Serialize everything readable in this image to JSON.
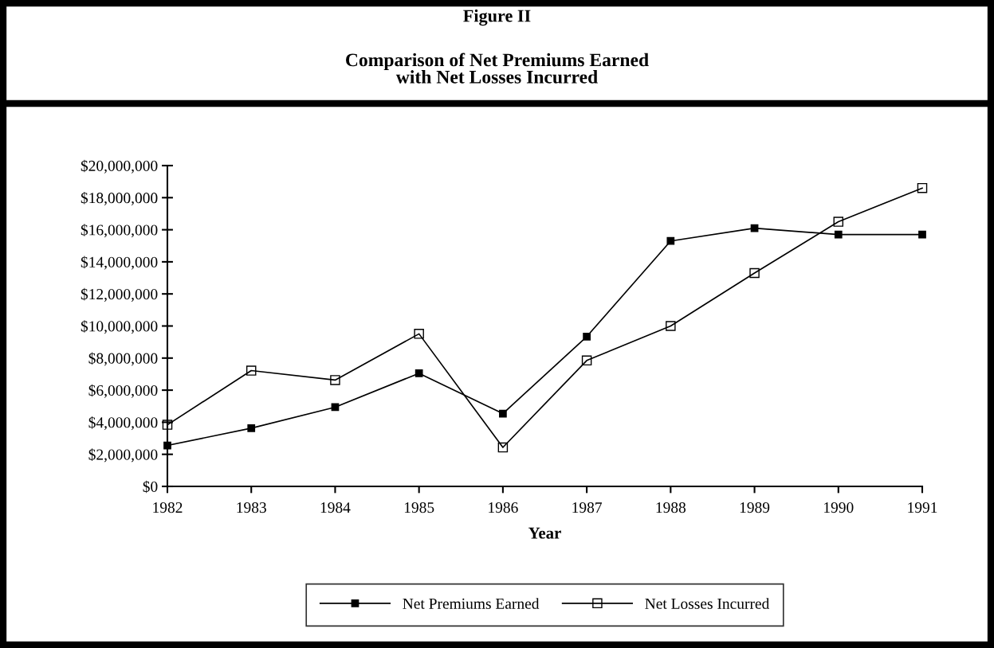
{
  "chart_data": {
    "type": "line",
    "title": "Figure II",
    "subtitle": "Comparison of Net Premiums Earned\nwith Net Losses Incurred",
    "xlabel": "Year",
    "categories": [
      "1982",
      "1983",
      "1984",
      "1985",
      "1986",
      "1987",
      "1988",
      "1989",
      "1990",
      "1991"
    ],
    "series": [
      {
        "name": "Net Premiums Earned",
        "color": "#000000",
        "marker": "square",
        "values": [
          2550000,
          3630000,
          4940000,
          7050000,
          4540000,
          9340000,
          15300000,
          16100000,
          15700000,
          15700000
        ]
      },
      {
        "name": "Net Losses Incurred",
        "color": "#000000",
        "marker": "square_open",
        "values": [
          3840000,
          7220000,
          6630000,
          9510000,
          2430000,
          7850000,
          10000000,
          13300000,
          16500000,
          18600000
        ]
      }
    ],
    "ylim": [
      0,
      20000000
    ],
    "yticks": [
      {
        "value": 0,
        "label": "$0"
      },
      {
        "value": 2000000,
        "label": "$2,000,000"
      },
      {
        "value": 4000000,
        "label": "$4,000,000"
      },
      {
        "value": 6000000,
        "label": "$6,000,000"
      },
      {
        "value": 8000000,
        "label": "$8,000,000"
      },
      {
        "value": 10000000,
        "label": "$10,000,000"
      },
      {
        "value": 12000000,
        "label": "$12,000,000"
      },
      {
        "value": 14000000,
        "label": "$14,000,000"
      },
      {
        "value": 16000000,
        "label": "$16,000,000"
      },
      {
        "value": 18000000,
        "label": "$18,000,000"
      },
      {
        "value": 20000000,
        "label": "$20,000,000"
      }
    ],
    "grid": false,
    "legend": "bottom",
    "line_style": "solid"
  }
}
